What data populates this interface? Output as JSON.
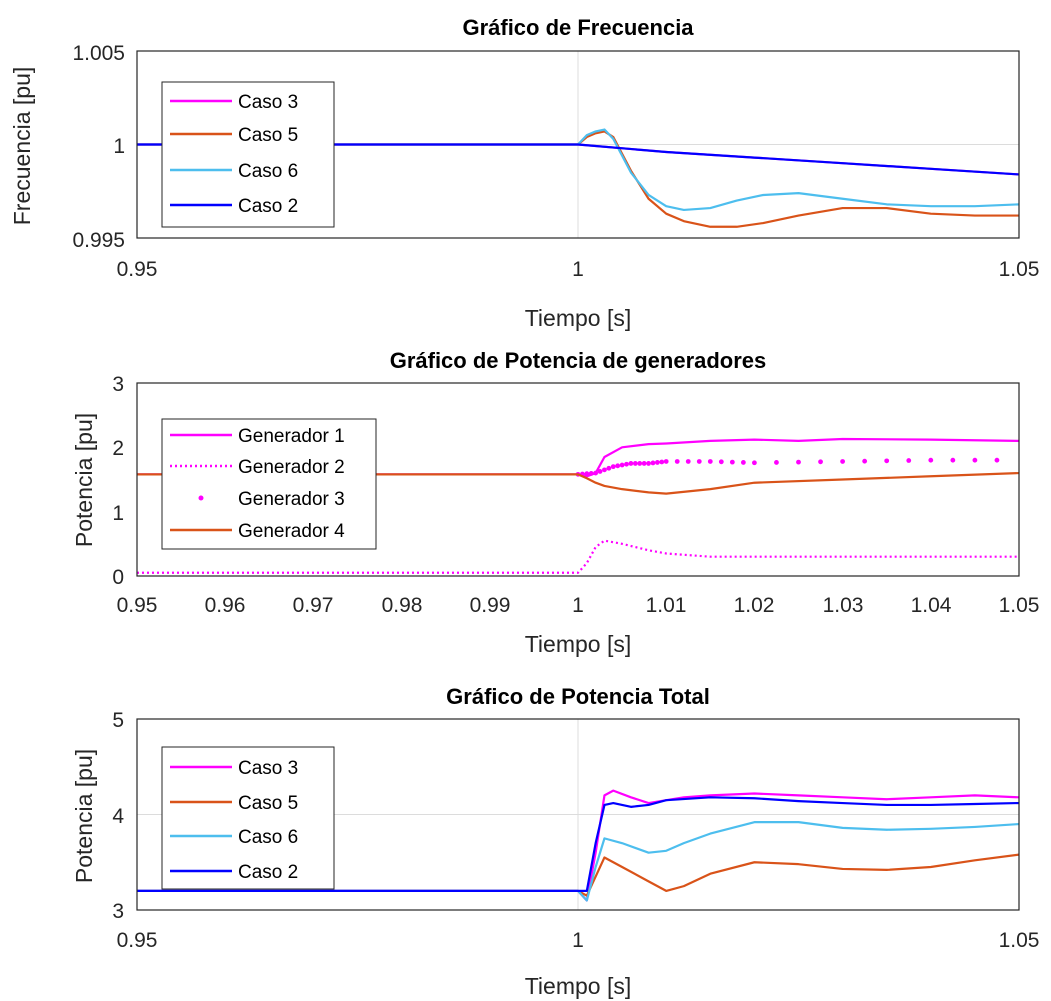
{
  "charts": {
    "frequency": {
      "title": "Gráfico de Frecuencia",
      "xlabel": "Tiempo [s]",
      "ylabel": "Frecuencia [pu]",
      "xticks": [
        "0.95",
        "1",
        "1.05"
      ],
      "yticks": [
        "0.995",
        "1",
        "1.005"
      ],
      "legend": [
        "Caso 3",
        "Caso 5",
        "Caso 6",
        "Caso 2"
      ]
    },
    "generators": {
      "title": "Gráfico de Potencia de generadores",
      "xlabel": "Tiempo [s]",
      "ylabel": "Potencia [pu]",
      "xticks": [
        "0.95",
        "0.96",
        "0.97",
        "0.98",
        "0.99",
        "1",
        "1.01",
        "1.02",
        "1.03",
        "1.04",
        "1.05"
      ],
      "yticks": [
        "0",
        "1",
        "2",
        "3"
      ],
      "legend": [
        "Generador 1",
        "Generador 2",
        "Generador 3",
        "Generador 4"
      ]
    },
    "total": {
      "title": "Gráfico de Potencia Total",
      "xlabel": "Tiempo [s]",
      "ylabel": "Potencia [pu]",
      "xticks": [
        "0.95",
        "1",
        "1.05"
      ],
      "yticks": [
        "3",
        "4",
        "5"
      ],
      "legend": [
        "Caso 3",
        "Caso 5",
        "Caso 6",
        "Caso 2"
      ]
    }
  },
  "chart_data": [
    {
      "type": "line",
      "title": "Gráfico de Frecuencia",
      "xlabel": "Tiempo [s]",
      "ylabel": "Frecuencia [pu]",
      "xlim": [
        0.95,
        1.05
      ],
      "ylim": [
        0.995,
        1.005
      ],
      "grid": true,
      "legend_position": "top-left",
      "series": [
        {
          "name": "Caso 3",
          "color": "#ff00ff",
          "style": "solid",
          "x": [
            0.95,
            1.0,
            1.01,
            1.02,
            1.03,
            1.04,
            1.05
          ],
          "y": [
            1.0,
            1.0,
            0.9996,
            0.9993,
            0.999,
            0.9987,
            0.9984
          ]
        },
        {
          "name": "Caso 5",
          "color": "#d95319",
          "style": "solid",
          "x": [
            0.95,
            1.0,
            1.001,
            1.002,
            1.003,
            1.004,
            1.006,
            1.008,
            1.01,
            1.012,
            1.015,
            1.018,
            1.021,
            1.025,
            1.03,
            1.035,
            1.04,
            1.045,
            1.05
          ],
          "y": [
            1.0,
            1.0,
            1.0004,
            1.0006,
            1.0007,
            1.0004,
            0.9986,
            0.9971,
            0.9963,
            0.9959,
            0.9956,
            0.9956,
            0.9958,
            0.9962,
            0.9966,
            0.9966,
            0.9963,
            0.9962,
            0.9962
          ]
        },
        {
          "name": "Caso 6",
          "color": "#4dbeee",
          "style": "solid",
          "x": [
            0.95,
            1.0,
            1.001,
            1.002,
            1.003,
            1.004,
            1.006,
            1.008,
            1.01,
            1.012,
            1.015,
            1.018,
            1.021,
            1.025,
            1.03,
            1.035,
            1.04,
            1.045,
            1.05
          ],
          "y": [
            1.0,
            1.0,
            1.0005,
            1.0007,
            1.0008,
            1.0003,
            0.9985,
            0.9973,
            0.9967,
            0.9965,
            0.9966,
            0.997,
            0.9973,
            0.9974,
            0.9971,
            0.9968,
            0.9967,
            0.9967,
            0.9968
          ]
        },
        {
          "name": "Caso 2",
          "color": "#0000ff",
          "style": "solid",
          "x": [
            0.95,
            1.0,
            1.01,
            1.02,
            1.03,
            1.04,
            1.05
          ],
          "y": [
            1.0,
            1.0,
            0.9996,
            0.9993,
            0.999,
            0.9987,
            0.9984
          ]
        }
      ]
    },
    {
      "type": "line",
      "title": "Gráfico de Potencia de generadores",
      "xlabel": "Tiempo [s]",
      "ylabel": "Potencia [pu]",
      "xlim": [
        0.95,
        1.05
      ],
      "ylim": [
        0,
        3
      ],
      "grid": false,
      "legend_position": "top-left",
      "series": [
        {
          "name": "Generador 1",
          "color": "#ff00ff",
          "style": "solid",
          "x": [
            0.95,
            1.0,
            1.001,
            1.002,
            1.003,
            1.005,
            1.008,
            1.01,
            1.015,
            1.02,
            1.025,
            1.03,
            1.04,
            1.05
          ],
          "y": [
            1.58,
            1.58,
            1.55,
            1.6,
            1.85,
            2.0,
            2.05,
            2.06,
            2.1,
            2.12,
            2.1,
            2.13,
            2.12,
            2.1
          ]
        },
        {
          "name": "Generador 2",
          "color": "#ff00ff",
          "style": "dotted",
          "x": [
            0.95,
            1.0,
            1.001,
            1.002,
            1.003,
            1.005,
            1.008,
            1.01,
            1.015,
            1.02,
            1.03,
            1.04,
            1.05
          ],
          "y": [
            0.05,
            0.05,
            0.2,
            0.45,
            0.55,
            0.5,
            0.4,
            0.35,
            0.3,
            0.3,
            0.3,
            0.3,
            0.3
          ]
        },
        {
          "name": "Generador 3",
          "color": "#ff00ff",
          "style": "markers",
          "x": [
            0.95,
            1.0,
            1.002,
            1.004,
            1.006,
            1.008,
            1.01,
            1.015,
            1.02,
            1.03,
            1.04,
            1.05
          ],
          "y": [
            1.58,
            1.58,
            1.6,
            1.7,
            1.75,
            1.75,
            1.78,
            1.78,
            1.76,
            1.78,
            1.8,
            1.8
          ]
        },
        {
          "name": "Generador 4",
          "color": "#d95319",
          "style": "solid",
          "x": [
            0.95,
            1.0,
            1.001,
            1.002,
            1.003,
            1.005,
            1.008,
            1.01,
            1.015,
            1.02,
            1.03,
            1.04,
            1.05
          ],
          "y": [
            1.58,
            1.58,
            1.52,
            1.45,
            1.4,
            1.35,
            1.3,
            1.28,
            1.35,
            1.45,
            1.5,
            1.55,
            1.6
          ]
        }
      ]
    },
    {
      "type": "line",
      "title": "Gráfico de Potencia Total",
      "xlabel": "Tiempo [s]",
      "ylabel": "Potencia [pu]",
      "xlim": [
        0.95,
        1.05
      ],
      "ylim": [
        3,
        5
      ],
      "grid": true,
      "legend_position": "top-left",
      "series": [
        {
          "name": "Caso 3",
          "color": "#ff00ff",
          "style": "solid",
          "x": [
            0.95,
            1.0,
            1.001,
            1.002,
            1.003,
            1.004,
            1.006,
            1.008,
            1.01,
            1.012,
            1.015,
            1.02,
            1.025,
            1.03,
            1.035,
            1.04,
            1.045,
            1.05
          ],
          "y": [
            3.2,
            3.2,
            3.1,
            3.6,
            4.2,
            4.25,
            4.18,
            4.12,
            4.15,
            4.18,
            4.2,
            4.22,
            4.2,
            4.18,
            4.16,
            4.18,
            4.2,
            4.18
          ]
        },
        {
          "name": "Caso 5",
          "color": "#d95319",
          "style": "solid",
          "x": [
            0.95,
            1.0,
            1.001,
            1.002,
            1.003,
            1.005,
            1.008,
            1.01,
            1.012,
            1.015,
            1.02,
            1.025,
            1.03,
            1.035,
            1.04,
            1.045,
            1.05
          ],
          "y": [
            3.2,
            3.2,
            3.15,
            3.35,
            3.55,
            3.45,
            3.3,
            3.2,
            3.25,
            3.38,
            3.5,
            3.48,
            3.43,
            3.42,
            3.45,
            3.52,
            3.58
          ]
        },
        {
          "name": "Caso 6",
          "color": "#4dbeee",
          "style": "solid",
          "x": [
            0.95,
            1.0,
            1.001,
            1.002,
            1.003,
            1.005,
            1.008,
            1.01,
            1.012,
            1.015,
            1.02,
            1.025,
            1.03,
            1.035,
            1.04,
            1.045,
            1.05
          ],
          "y": [
            3.2,
            3.2,
            3.1,
            3.45,
            3.75,
            3.7,
            3.6,
            3.62,
            3.7,
            3.8,
            3.92,
            3.92,
            3.86,
            3.84,
            3.85,
            3.87,
            3.9
          ]
        },
        {
          "name": "Caso 2",
          "color": "#0000ff",
          "style": "solid",
          "x": [
            0.95,
            1.0,
            1.001,
            1.002,
            1.003,
            1.004,
            1.006,
            1.008,
            1.01,
            1.015,
            1.02,
            1.025,
            1.03,
            1.035,
            1.04,
            1.045,
            1.05
          ],
          "y": [
            3.2,
            3.2,
            3.2,
            3.7,
            4.1,
            4.12,
            4.08,
            4.1,
            4.15,
            4.18,
            4.17,
            4.14,
            4.12,
            4.1,
            4.1,
            4.11,
            4.12
          ]
        }
      ]
    }
  ]
}
